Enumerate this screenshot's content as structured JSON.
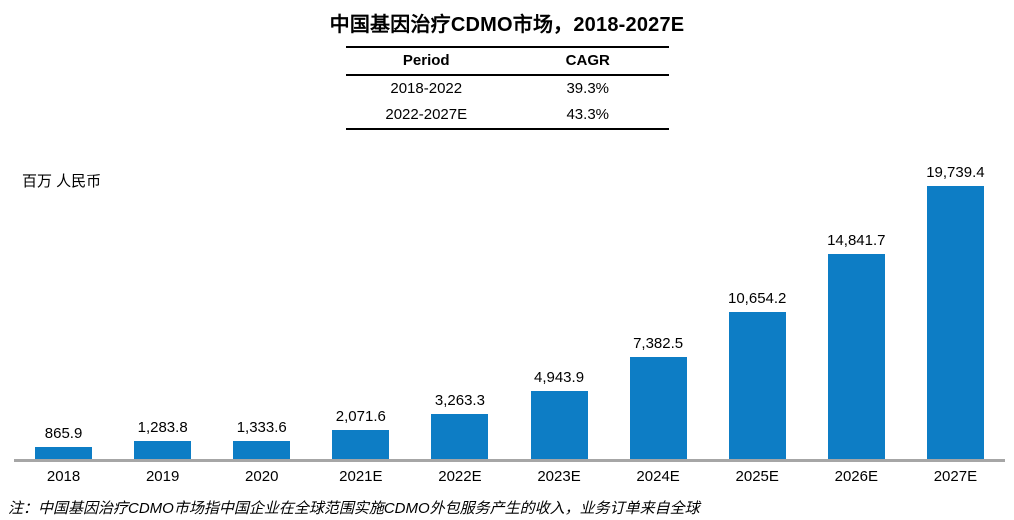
{
  "title": "中国基因治疗CDMO市场，2018-2027E",
  "cagr_table": {
    "headers": [
      "Period",
      "CAGR"
    ],
    "rows": [
      {
        "period": "2018-2022",
        "cagr": "39.3%"
      },
      {
        "period": "2022-2027E",
        "cagr": "43.3%"
      }
    ]
  },
  "unit_label": "百万 人民币",
  "note": "注：中国基因治疗CDMO市场指中国企业在全球范围实施CDMO外包服务产生的收入，业务订单来自全球",
  "colors": {
    "bar": "#0d7dc5",
    "axis": "#a6a6a6",
    "text": "#000000"
  },
  "chart_data": {
    "type": "bar",
    "title": "中国基因治疗CDMO市场，2018-2027E",
    "categories": [
      "2018",
      "2019",
      "2020",
      "2021E",
      "2022E",
      "2023E",
      "2024E",
      "2025E",
      "2026E",
      "2027E"
    ],
    "values": [
      865.9,
      1283.8,
      1333.6,
      2071.6,
      3263.3,
      4943.9,
      7382.5,
      10654.2,
      14841.7,
      19739.4
    ],
    "labels": [
      "865.9",
      "1,283.8",
      "1,333.6",
      "2,071.6",
      "3,263.3",
      "4,943.9",
      "7,382.5",
      "10,654.2",
      "14,841.7",
      "19,739.4"
    ],
    "xlabel": "",
    "ylabel": "百万 人民币",
    "ylim": [
      0,
      20000
    ],
    "grid": false,
    "legend_position": "none",
    "annotations": [
      {
        "table": "CAGR",
        "rows": [
          [
            "2018-2022",
            "39.3%"
          ],
          [
            "2022-2027E",
            "43.3%"
          ]
        ]
      }
    ]
  }
}
